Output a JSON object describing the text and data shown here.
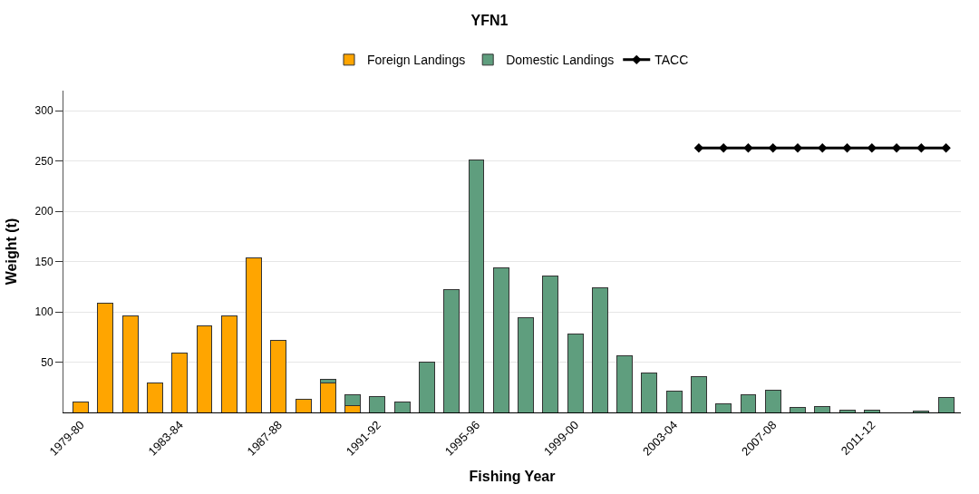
{
  "chart_data": {
    "type": "bar",
    "title": "YFN1",
    "xlabel": "Fishing Year",
    "ylabel": "Weight (t)",
    "categories": [
      "1979-80",
      null,
      null,
      null,
      "1983-84",
      null,
      null,
      null,
      "1987-88",
      null,
      null,
      null,
      "1991-92",
      null,
      null,
      null,
      "1995-96",
      null,
      null,
      null,
      "1999-00",
      null,
      null,
      null,
      "2003-04",
      null,
      null,
      null,
      "2007-08",
      null,
      null,
      null,
      "2011-12",
      null,
      null,
      null
    ],
    "stacked": true,
    "series": [
      {
        "name": "Foreign Landings",
        "color": "#ffa500",
        "values": [
          10,
          109,
          96,
          29,
          59,
          86,
          96,
          154,
          72,
          13,
          29,
          7,
          null,
          null,
          null,
          null,
          null,
          null,
          null,
          null,
          null,
          null,
          null,
          null,
          null,
          null,
          null,
          null,
          null,
          null,
          null,
          null,
          null,
          null,
          null,
          null
        ]
      },
      {
        "name": "Domestic Landings",
        "color": "#5f9e7e",
        "values": [
          null,
          null,
          null,
          null,
          null,
          null,
          null,
          null,
          null,
          null,
          4,
          11,
          16,
          10,
          50,
          122,
          251,
          144,
          94,
          136,
          78,
          124,
          56,
          39,
          21,
          36,
          9,
          18,
          22,
          5,
          6,
          2,
          2,
          null,
          1,
          15
        ]
      },
      {
        "name": "TACC",
        "type": "line",
        "color": "#000000",
        "marker": "diamond",
        "line_style": "solid",
        "values": [
          null,
          null,
          null,
          null,
          null,
          null,
          null,
          null,
          null,
          null,
          null,
          null,
          null,
          null,
          null,
          null,
          null,
          null,
          null,
          null,
          null,
          null,
          null,
          null,
          null,
          263,
          263,
          263,
          263,
          263,
          263,
          263,
          263,
          263,
          263,
          263
        ]
      }
    ],
    "ylim": [
      0,
      320
    ],
    "yticks": [
      50,
      100,
      150,
      200,
      250,
      300
    ],
    "grid": "y",
    "legend": "top"
  }
}
